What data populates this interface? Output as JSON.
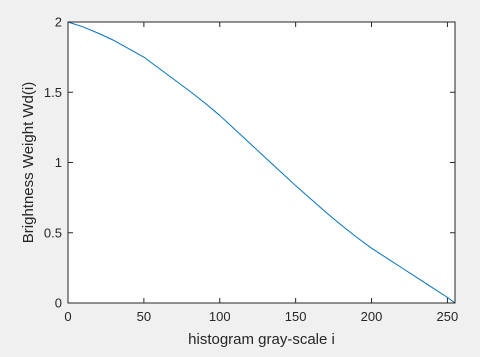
{
  "chart_data": {
    "type": "line",
    "title": "",
    "xlabel": "histogram gray-scale i",
    "ylabel": "Brightness Weight Wd(i)",
    "xlim": [
      0,
      255
    ],
    "ylim": [
      0,
      2
    ],
    "xticks": [
      0,
      50,
      100,
      150,
      200,
      250
    ],
    "yticks": [
      0,
      0.5,
      1,
      1.5,
      2
    ],
    "xtick_labels": [
      "0",
      "50",
      "100",
      "150",
      "200",
      "250"
    ],
    "ytick_labels": [
      "0",
      "0.5",
      "1",
      "1.5",
      "2"
    ],
    "grid": false,
    "line_color": "#0072bd",
    "background_color": "#f0f0f0",
    "axes_color": "#ffffff",
    "series": [
      {
        "x": [
          0,
          10,
          20,
          30,
          40,
          50,
          60,
          70,
          80,
          90,
          100,
          110,
          120,
          130,
          140,
          150,
          160,
          170,
          180,
          190,
          200,
          210,
          220,
          230,
          240,
          250,
          255
        ],
        "y": [
          2.0,
          1.965,
          1.92,
          1.87,
          1.81,
          1.75,
          1.67,
          1.59,
          1.51,
          1.425,
          1.335,
          1.235,
          1.135,
          1.035,
          0.935,
          0.835,
          0.74,
          0.645,
          0.555,
          0.47,
          0.39,
          0.32,
          0.25,
          0.18,
          0.11,
          0.04,
          0.0
        ]
      }
    ]
  }
}
